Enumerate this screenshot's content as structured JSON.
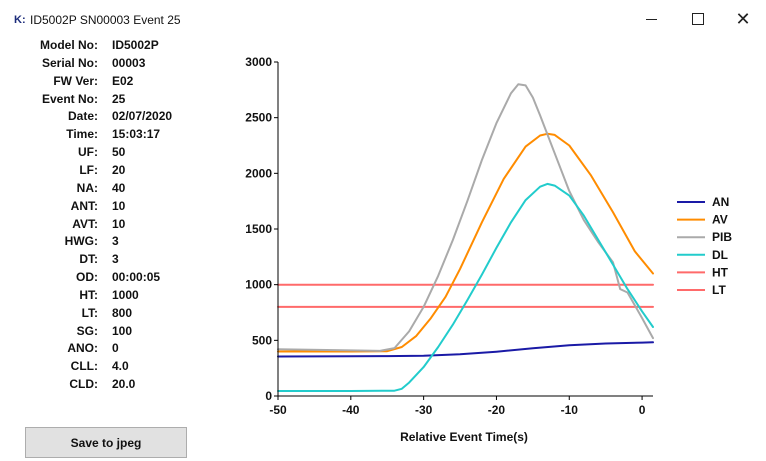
{
  "window": {
    "icon_text": "K:",
    "title": "ID5002P SN00003 Event 25",
    "minimize": "minimize",
    "maximize": "maximize",
    "close": "close"
  },
  "info": [
    {
      "label": "Model No:",
      "value": "ID5002P"
    },
    {
      "label": "Serial No:",
      "value": "00003"
    },
    {
      "label": "FW Ver:",
      "value": "E02"
    },
    {
      "label": "Event No:",
      "value": "25"
    },
    {
      "label": "Date:",
      "value": "02/07/2020"
    },
    {
      "label": "Time:",
      "value": "15:03:17"
    },
    {
      "label": "UF:",
      "value": "50"
    },
    {
      "label": "LF:",
      "value": "20"
    },
    {
      "label": "NA:",
      "value": "40"
    },
    {
      "label": "ANT:",
      "value": "10"
    },
    {
      "label": "AVT:",
      "value": "10"
    },
    {
      "label": "HWG:",
      "value": "3"
    },
    {
      "label": "DT:",
      "value": "3"
    },
    {
      "label": "OD:",
      "value": "00:00:05"
    },
    {
      "label": "HT:",
      "value": "1000"
    },
    {
      "label": "LT:",
      "value": "800"
    },
    {
      "label": "SG:",
      "value": "100"
    },
    {
      "label": "ANO:",
      "value": "0"
    },
    {
      "label": "CLL:",
      "value": "4.0"
    },
    {
      "label": "CLD:",
      "value": "20.0"
    }
  ],
  "save_button": "Save to jpeg",
  "chart_data": {
    "type": "line",
    "title": "",
    "xlabel": "Relative Event Time(s)",
    "ylabel": "",
    "xlim": [
      -50,
      1.5
    ],
    "ylim": [
      0,
      3000
    ],
    "xticks": [
      -50,
      -40,
      -30,
      -20,
      -10,
      0
    ],
    "yticks": [
      0,
      500,
      1000,
      1500,
      2000,
      2500,
      3000
    ],
    "grid": false,
    "legend": "right",
    "series": [
      {
        "name": "AN",
        "color": "#1a1aa6",
        "x": [
          -50,
          -40,
          -35,
          -30,
          -25,
          -20,
          -15,
          -10,
          -5,
          0,
          1.5
        ],
        "y": [
          355,
          357,
          358,
          362,
          375,
          398,
          428,
          455,
          472,
          480,
          482
        ]
      },
      {
        "name": "AV",
        "color": "#ff8c00",
        "x": [
          -50,
          -40,
          -35,
          -33,
          -31,
          -29,
          -27,
          -25,
          -22,
          -19,
          -16,
          -14,
          -13,
          -12,
          -10,
          -7,
          -4,
          -1,
          1.5
        ],
        "y": [
          400,
          400,
          402,
          440,
          540,
          700,
          890,
          1140,
          1560,
          1950,
          2240,
          2340,
          2355,
          2345,
          2250,
          1980,
          1650,
          1300,
          1100
        ]
      },
      {
        "name": "PIB",
        "color": "#aaaaaa",
        "x": [
          -50,
          -40,
          -36,
          -34,
          -32,
          -30,
          -28,
          -26,
          -24,
          -22,
          -20,
          -18,
          -17,
          -16,
          -15,
          -14,
          -12,
          -10,
          -8,
          -6,
          -4,
          -3,
          -2,
          0,
          1.5
        ],
        "y": [
          420,
          410,
          405,
          430,
          580,
          800,
          1080,
          1400,
          1750,
          2120,
          2450,
          2720,
          2800,
          2790,
          2680,
          2520,
          2180,
          1840,
          1580,
          1380,
          1200,
          960,
          930,
          700,
          520
        ]
      },
      {
        "name": "DL",
        "color": "#22cccc",
        "x": [
          -50,
          -40,
          -34,
          -33,
          -32,
          -30,
          -28,
          -26,
          -24,
          -22,
          -20,
          -18,
          -16,
          -14,
          -13,
          -12,
          -10,
          -8,
          -6,
          -4,
          -2,
          0,
          1.5
        ],
        "y": [
          45,
          45,
          48,
          65,
          120,
          260,
          440,
          640,
          860,
          1090,
          1330,
          1560,
          1760,
          1880,
          1905,
          1890,
          1800,
          1620,
          1400,
          1180,
          960,
          760,
          620
        ]
      },
      {
        "name": "HT",
        "color": "#ff6a6a",
        "x": [
          -50,
          1.5
        ],
        "y": [
          1000,
          1000
        ]
      },
      {
        "name": "LT",
        "color": "#ff6a6a",
        "x": [
          -50,
          1.5
        ],
        "y": [
          800,
          800
        ]
      }
    ]
  }
}
